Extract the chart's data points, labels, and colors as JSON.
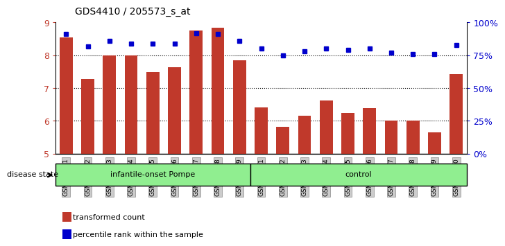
{
  "title": "GDS4410 / 205573_s_at",
  "samples": [
    "GSM947471",
    "GSM947472",
    "GSM947473",
    "GSM947474",
    "GSM947475",
    "GSM947476",
    "GSM947477",
    "GSM947478",
    "GSM947479",
    "GSM947461",
    "GSM947462",
    "GSM947463",
    "GSM947464",
    "GSM947465",
    "GSM947466",
    "GSM947467",
    "GSM947468",
    "GSM947469",
    "GSM947470"
  ],
  "bar_values": [
    8.55,
    7.27,
    8.0,
    8.0,
    7.48,
    7.63,
    8.75,
    8.83,
    7.85,
    6.42,
    5.83,
    6.15,
    6.62,
    6.25,
    6.38,
    6.02,
    6.02,
    5.65,
    7.42
  ],
  "percentile_values": [
    91,
    82,
    86,
    84,
    84,
    84,
    92,
    91,
    86,
    80,
    75,
    78,
    80,
    79,
    80,
    77,
    76,
    76,
    83
  ],
  "bar_color": "#c0392b",
  "dot_color": "#0000cc",
  "ylim_left": [
    5,
    9
  ],
  "ylim_right": [
    0,
    100
  ],
  "yticks_left": [
    5,
    6,
    7,
    8,
    9
  ],
  "yticks_right": [
    0,
    25,
    50,
    75,
    100
  ],
  "ytick_labels_right": [
    "0%",
    "25%",
    "50%",
    "75%",
    "100%"
  ],
  "group1_label": "infantile-onset Pompe",
  "group2_label": "control",
  "group1_count": 9,
  "group2_count": 10,
  "disease_state_label": "disease state",
  "legend_bar_label": "transformed count",
  "legend_dot_label": "percentile rank within the sample",
  "bar_width": 0.6,
  "background_color": "#ffffff",
  "group_bg": "#90ee90",
  "xticklabel_bg": "#cccccc",
  "grid_vals": [
    6,
    7,
    8
  ]
}
